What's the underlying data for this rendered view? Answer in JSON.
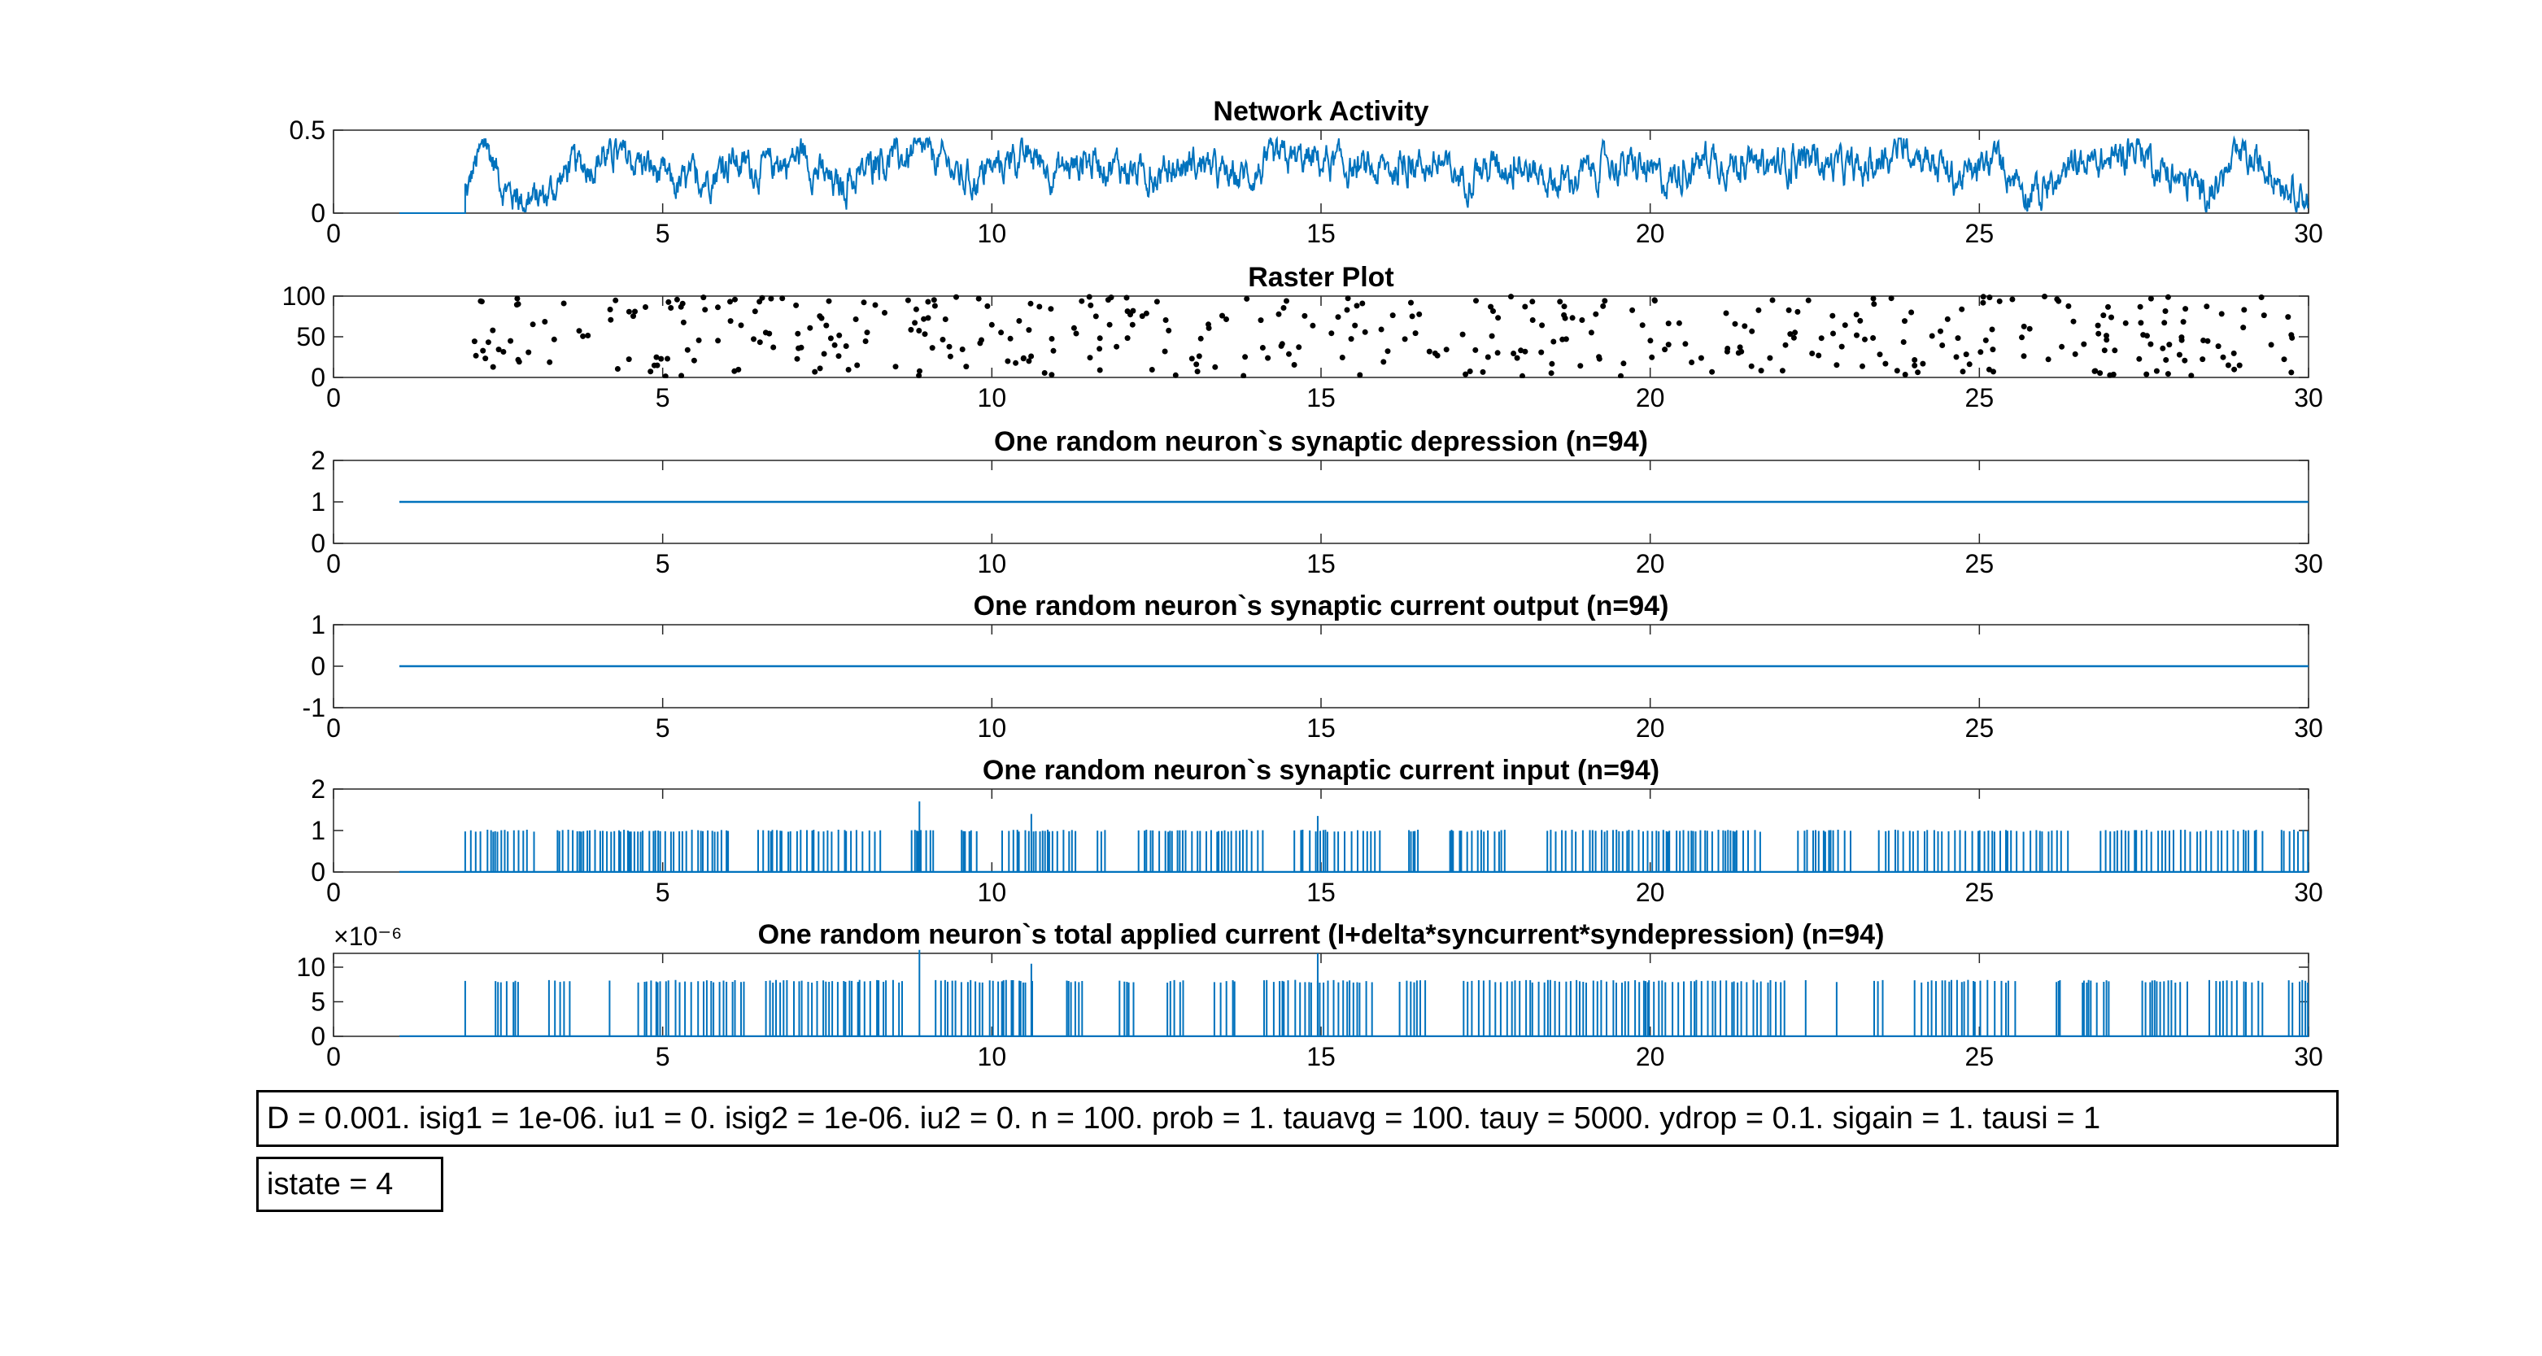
{
  "line_color": "#0072BD",
  "marker_color": "#000000",
  "chart_data": [
    {
      "type": "line",
      "title": "Network Activity",
      "xlim": [
        0,
        30
      ],
      "ylim": [
        0,
        0.5
      ],
      "xticks": [
        0,
        5,
        10,
        15,
        20,
        25,
        30
      ],
      "yticks": [
        0,
        0.5
      ],
      "ytick_labels": [
        "0",
        "0.5"
      ],
      "start": 1.0,
      "description_points": [
        [
          0,
          0
        ],
        [
          1.0,
          0
        ],
        [
          1.99,
          0
        ],
        [
          2.1,
          0.28
        ],
        [
          2.3,
          0.4
        ],
        [
          2.6,
          0.12
        ],
        [
          2.9,
          0.06
        ],
        [
          3.2,
          0.1
        ],
        [
          3.5,
          0.24
        ],
        [
          4.0,
          0.33
        ],
        [
          4.6,
          0.31
        ],
        [
          5.2,
          0.15
        ],
        [
          6.0,
          0.3
        ],
        [
          6.6,
          0.26
        ],
        [
          7.1,
          0.35
        ],
        [
          7.6,
          0.14
        ],
        [
          8.4,
          0.3
        ],
        [
          9.0,
          0.38
        ],
        [
          9.6,
          0.18
        ],
        [
          10.4,
          0.33
        ],
        [
          11.0,
          0.26
        ],
        [
          11.6,
          0.32
        ],
        [
          12.4,
          0.22
        ],
        [
          13.0,
          0.3
        ],
        [
          13.6,
          0.2
        ],
        [
          14.5,
          0.32
        ],
        [
          15.1,
          0.3
        ],
        [
          15.8,
          0.24
        ],
        [
          16.5,
          0.3
        ],
        [
          17.1,
          0.22
        ],
        [
          17.8,
          0.3
        ],
        [
          18.6,
          0.18
        ],
        [
          19.4,
          0.3
        ],
        [
          20.2,
          0.2
        ],
        [
          20.9,
          0.34
        ],
        [
          21.6,
          0.26
        ],
        [
          22.4,
          0.32
        ],
        [
          23.2,
          0.24
        ],
        [
          23.9,
          0.42
        ],
        [
          24.6,
          0.2
        ],
        [
          25.3,
          0.3
        ],
        [
          25.9,
          0.08
        ],
        [
          26.5,
          0.3
        ],
        [
          27.1,
          0.32
        ],
        [
          27.4,
          0.4
        ],
        [
          27.9,
          0.2
        ],
        [
          28.5,
          0.1
        ],
        [
          28.9,
          0.32
        ],
        [
          29.5,
          0.24
        ],
        [
          30.0,
          0.08
        ]
      ]
    },
    {
      "type": "scatter",
      "title": "Raster Plot",
      "xlim": [
        0,
        30
      ],
      "ylim": [
        0,
        100
      ],
      "xticks": [
        0,
        5,
        10,
        15,
        20,
        25,
        30
      ],
      "yticks": [
        0,
        50,
        100
      ],
      "ytick_labels": [
        "0",
        "50",
        "100"
      ],
      "x_range": [
        2.0,
        30.0
      ],
      "n_points": 420,
      "y_range": [
        1,
        100
      ]
    },
    {
      "type": "line",
      "title": "One random neuron`s synaptic depression (n=94)",
      "xlim": [
        0,
        30
      ],
      "ylim": [
        0,
        2
      ],
      "xticks": [
        0,
        5,
        10,
        15,
        20,
        25,
        30
      ],
      "yticks": [
        0,
        1,
        2
      ],
      "ytick_labels": [
        "0",
        "1",
        "2"
      ],
      "x": [
        1.0,
        30.0
      ],
      "y": [
        1,
        1
      ]
    },
    {
      "type": "line",
      "title": "One random neuron`s synaptic current output (n=94)",
      "xlim": [
        0,
        30
      ],
      "ylim": [
        -1,
        1
      ],
      "xticks": [
        0,
        5,
        10,
        15,
        20,
        25,
        30
      ],
      "yticks": [
        -1,
        0,
        1
      ],
      "ytick_labels": [
        "-1",
        "0",
        "1"
      ],
      "x": [
        1.0,
        30.0
      ],
      "y": [
        0,
        0
      ]
    },
    {
      "type": "line",
      "title": "One random neuron`s synaptic current input (n=94)",
      "xlim": [
        0,
        30
      ],
      "ylim": [
        0,
        2
      ],
      "xticks": [
        0,
        5,
        10,
        15,
        20,
        25,
        30
      ],
      "yticks": [
        0,
        1,
        2
      ],
      "ytick_labels": [
        "0",
        "1",
        "2"
      ],
      "start": 1.0,
      "spike_start": 2.0,
      "spike_height": 1,
      "tall_spikes": [
        [
          8.9,
          1.7
        ],
        [
          10.6,
          1.4
        ],
        [
          14.95,
          1.35
        ]
      ]
    },
    {
      "type": "line",
      "title": "One random neuron`s total applied current (I+delta*syncurrent*syndepression) (n=94)",
      "xlim": [
        0,
        30
      ],
      "ylim": [
        0,
        12
      ],
      "xticks": [
        0,
        5,
        10,
        15,
        20,
        25,
        30
      ],
      "yticks": [
        0,
        5,
        10
      ],
      "ytick_labels": [
        "0",
        "5",
        "10"
      ],
      "exponent_label": "×10⁻⁶",
      "start": 1.0,
      "spike_start": 2.0,
      "spike_height": 8,
      "tall_spikes": [
        [
          8.9,
          12.5
        ],
        [
          10.6,
          10.5
        ],
        [
          14.95,
          12
        ]
      ]
    }
  ],
  "annotations": {
    "params": "D = 0.001. isig1 = 1e-06. iu1 = 0. isig2 = 1e-06. iu2 = 0. n = 100. prob = 1. tauavg = 100. tauy = 5000. ydrop = 0.1. sigain = 1. tausi = 1",
    "istate": "istate = 4"
  }
}
